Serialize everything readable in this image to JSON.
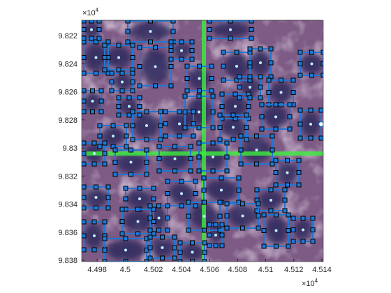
{
  "chart_data": {
    "type": "image",
    "xlim": [
      44969,
      45141
    ],
    "ylim": [
      98209,
      98381
    ],
    "y_reversed": true,
    "xticks": [
      {
        "value": 44980,
        "label": "4.498"
      },
      {
        "value": 45000,
        "label": "4.5"
      },
      {
        "value": 45020,
        "label": "4.502"
      },
      {
        "value": 45040,
        "label": "4.504"
      },
      {
        "value": 45060,
        "label": "4.506"
      },
      {
        "value": 45080,
        "label": "4.508"
      },
      {
        "value": 45100,
        "label": "4.51"
      },
      {
        "value": 45120,
        "label": "4.512"
      },
      {
        "value": 45140,
        "label": "4.514"
      }
    ],
    "yticks": [
      {
        "value": 98220,
        "label": "9.822"
      },
      {
        "value": 98240,
        "label": "9.824"
      },
      {
        "value": 98260,
        "label": "9.826"
      },
      {
        "value": 98280,
        "label": "9.828"
      },
      {
        "value": 98300,
        "label": "9.83"
      },
      {
        "value": 98320,
        "label": "9.832"
      },
      {
        "value": 98340,
        "label": "9.834"
      },
      {
        "value": 98360,
        "label": "9.836"
      },
      {
        "value": 98380,
        "label": "9.838"
      }
    ],
    "x_multiplier": {
      "base": "×10",
      "power": "4"
    },
    "y_multiplier": {
      "base": "×10",
      "power": "4"
    },
    "crosshair": {
      "x": 45056,
      "y": 98304,
      "color": "#3cf03c"
    },
    "roi_color": "#1f77d4"
  }
}
